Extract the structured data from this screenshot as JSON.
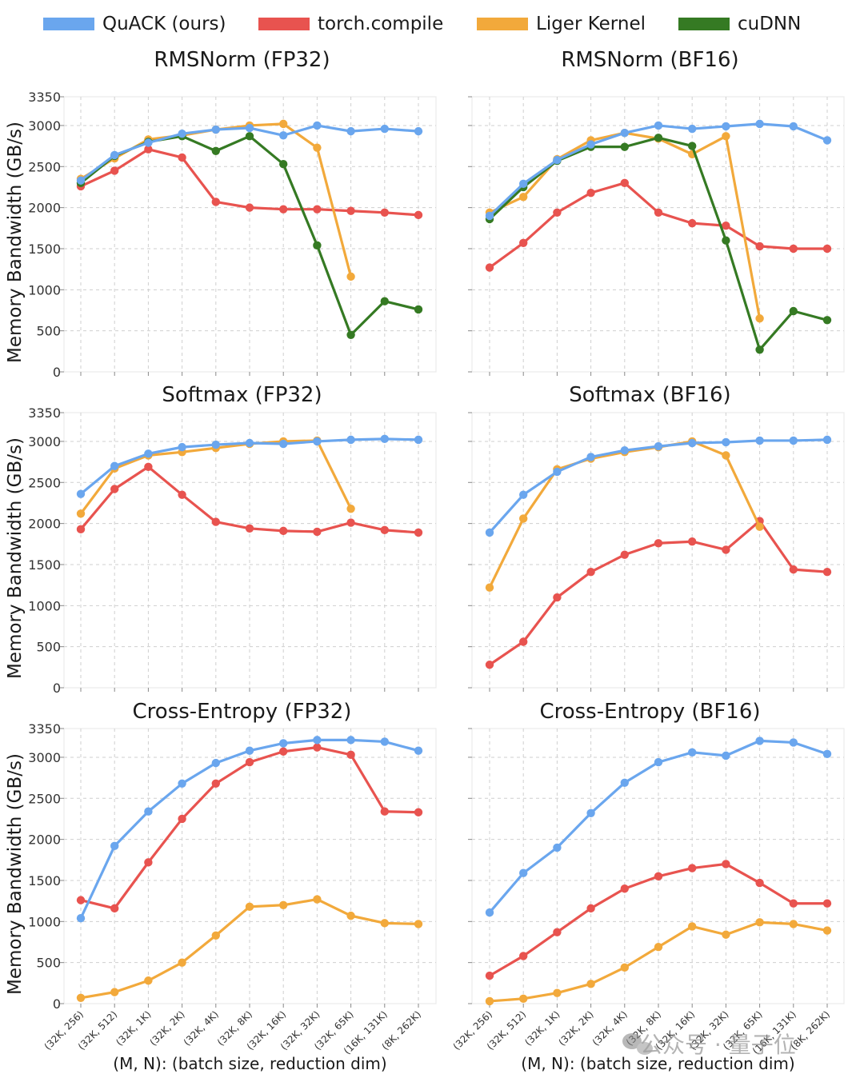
{
  "legend": [
    {
      "name": "QuACK (ours)",
      "color": "#6aa6ee"
    },
    {
      "name": "torch.compile",
      "color": "#e8534f"
    },
    {
      "name": "Liger Kernel",
      "color": "#f2a93b"
    },
    {
      "name": "cuDNN",
      "color": "#357a23"
    }
  ],
  "watermark": "公众号 · 量子位",
  "chart_data": [
    {
      "type": "line",
      "title": "RMSNorm (FP32)",
      "xlabel": "",
      "ylabel": "Memory Bandwidth (GB/s)",
      "ylim": [
        0,
        3350
      ],
      "yticks": [
        0,
        500,
        1000,
        1500,
        2000,
        2500,
        3000,
        3350
      ],
      "grid": true,
      "categories": [
        "(32K, 256)",
        "(32K, 512)",
        "(32K, 1K)",
        "(32K, 2K)",
        "(32K, 4K)",
        "(32K, 8K)",
        "(32K, 16K)",
        "(32K, 32K)",
        "(32K, 65K)",
        "(16K, 131K)",
        "(8K, 262K)"
      ],
      "series": [
        {
          "name": "torch.compile",
          "values": [
            2260,
            2450,
            2710,
            2610,
            2070,
            2000,
            1980,
            1980,
            1960,
            1940,
            1910
          ]
        },
        {
          "name": "Liger Kernel",
          "values": [
            2350,
            2600,
            2830,
            2880,
            2950,
            3000,
            3020,
            2730,
            1160,
            null,
            null
          ]
        },
        {
          "name": "cuDNN",
          "values": [
            2300,
            2630,
            2800,
            2870,
            2690,
            2870,
            2530,
            1540,
            450,
            860,
            760
          ]
        },
        {
          "name": "QuACK (ours)",
          "values": [
            2330,
            2640,
            2790,
            2900,
            2950,
            2970,
            2880,
            3000,
            2930,
            2960,
            2930
          ]
        }
      ]
    },
    {
      "type": "line",
      "title": "RMSNorm (BF16)",
      "xlabel": "",
      "ylabel": "",
      "ylim": [
        0,
        3350
      ],
      "yticks": [
        0,
        500,
        1000,
        1500,
        2000,
        2500,
        3000,
        3350
      ],
      "grid": true,
      "categories": [
        "(32K, 256)",
        "(32K, 512)",
        "(32K, 1K)",
        "(32K, 2K)",
        "(32K, 4K)",
        "(32K, 8K)",
        "(32K, 16K)",
        "(32K, 32K)",
        "(32K, 65K)",
        "(16K, 131K)",
        "(8K, 262K)"
      ],
      "series": [
        {
          "name": "torch.compile",
          "values": [
            1270,
            1570,
            1940,
            2180,
            2300,
            1940,
            1810,
            1780,
            1530,
            1500,
            1500
          ]
        },
        {
          "name": "Liger Kernel",
          "values": [
            1940,
            2130,
            2590,
            2820,
            2910,
            2840,
            2650,
            2870,
            650,
            null,
            null
          ]
        },
        {
          "name": "cuDNN",
          "values": [
            1860,
            2250,
            2570,
            2740,
            2740,
            2850,
            2750,
            1600,
            270,
            740,
            630
          ]
        },
        {
          "name": "QuACK (ours)",
          "values": [
            1900,
            2290,
            2580,
            2770,
            2910,
            3000,
            2960,
            2990,
            3020,
            2990,
            2820
          ]
        }
      ]
    },
    {
      "type": "line",
      "title": "Softmax (FP32)",
      "xlabel": "",
      "ylabel": "Memory Bandwidth (GB/s)",
      "ylim": [
        0,
        3350
      ],
      "yticks": [
        0,
        500,
        1000,
        1500,
        2000,
        2500,
        3000,
        3350
      ],
      "grid": true,
      "categories": [
        "(32K, 256)",
        "(32K, 512)",
        "(32K, 1K)",
        "(32K, 2K)",
        "(32K, 4K)",
        "(32K, 8K)",
        "(32K, 16K)",
        "(32K, 32K)",
        "(32K, 65K)",
        "(16K, 131K)",
        "(8K, 262K)"
      ],
      "series": [
        {
          "name": "torch.compile",
          "values": [
            1930,
            2420,
            2690,
            2350,
            2020,
            1940,
            1910,
            1900,
            2010,
            1920,
            1890
          ]
        },
        {
          "name": "Liger Kernel",
          "values": [
            2120,
            2670,
            2830,
            2870,
            2920,
            2970,
            3000,
            3010,
            2180,
            null,
            null
          ]
        },
        {
          "name": "QuACK (ours)",
          "values": [
            2360,
            2700,
            2850,
            2930,
            2960,
            2980,
            2970,
            3000,
            3020,
            3030,
            3020
          ]
        }
      ]
    },
    {
      "type": "line",
      "title": "Softmax (BF16)",
      "xlabel": "",
      "ylabel": "",
      "ylim": [
        0,
        3350
      ],
      "yticks": [
        0,
        500,
        1000,
        1500,
        2000,
        2500,
        3000,
        3350
      ],
      "grid": true,
      "categories": [
        "(32K, 256)",
        "(32K, 512)",
        "(32K, 1K)",
        "(32K, 2K)",
        "(32K, 4K)",
        "(32K, 8K)",
        "(32K, 16K)",
        "(32K, 32K)",
        "(32K, 65K)",
        "(16K, 131K)",
        "(8K, 262K)"
      ],
      "series": [
        {
          "name": "torch.compile",
          "values": [
            280,
            560,
            1100,
            1410,
            1620,
            1760,
            1780,
            1680,
            2030,
            1440,
            1410
          ]
        },
        {
          "name": "Liger Kernel",
          "values": [
            1220,
            2060,
            2660,
            2790,
            2870,
            2930,
            3000,
            2830,
            1960,
            null,
            null
          ]
        },
        {
          "name": "QuACK (ours)",
          "values": [
            1890,
            2350,
            2630,
            2810,
            2890,
            2940,
            2980,
            2990,
            3010,
            3010,
            3020
          ]
        }
      ]
    },
    {
      "type": "line",
      "title": "Cross-Entropy (FP32)",
      "xlabel": "(M, N): (batch size, reduction dim)",
      "ylabel": "Memory Bandwidth (GB/s)",
      "ylim": [
        0,
        3350
      ],
      "yticks": [
        0,
        500,
        1000,
        1500,
        2000,
        2500,
        3000,
        3350
      ],
      "grid": true,
      "categories": [
        "(32K, 256)",
        "(32K, 512)",
        "(32K, 1K)",
        "(32K, 2K)",
        "(32K, 4K)",
        "(32K, 8K)",
        "(32K, 16K)",
        "(32K, 32K)",
        "(32K, 65K)",
        "(16K, 131K)",
        "(8K, 262K)"
      ],
      "series": [
        {
          "name": "torch.compile",
          "values": [
            1260,
            1160,
            1720,
            2250,
            2680,
            2940,
            3070,
            3120,
            3030,
            2340,
            2330
          ]
        },
        {
          "name": "Liger Kernel",
          "values": [
            70,
            140,
            280,
            500,
            830,
            1180,
            1200,
            1270,
            1070,
            980,
            970
          ]
        },
        {
          "name": "QuACK (ours)",
          "values": [
            1040,
            1920,
            2340,
            2680,
            2930,
            3080,
            3170,
            3210,
            3210,
            3190,
            3080
          ]
        }
      ]
    },
    {
      "type": "line",
      "title": "Cross-Entropy (BF16)",
      "xlabel": "(M, N): (batch size, reduction dim)",
      "ylabel": "",
      "ylim": [
        0,
        3350
      ],
      "yticks": [
        0,
        500,
        1000,
        1500,
        2000,
        2500,
        3000,
        3350
      ],
      "grid": true,
      "categories": [
        "(32K, 256)",
        "(32K, 512)",
        "(32K, 1K)",
        "(32K, 2K)",
        "(32K, 4K)",
        "(32K, 8K)",
        "(32K, 16K)",
        "(32K, 32K)",
        "(32K, 65K)",
        "(16K, 131K)",
        "(8K, 262K)"
      ],
      "series": [
        {
          "name": "torch.compile",
          "values": [
            340,
            580,
            870,
            1160,
            1400,
            1550,
            1650,
            1700,
            1470,
            1220,
            1220
          ]
        },
        {
          "name": "Liger Kernel",
          "values": [
            30,
            60,
            130,
            240,
            440,
            690,
            940,
            840,
            990,
            970,
            890
          ]
        },
        {
          "name": "QuACK (ours)",
          "values": [
            1110,
            1590,
            1900,
            2320,
            2690,
            2940,
            3060,
            3020,
            3200,
            3180,
            3040
          ]
        }
      ]
    }
  ]
}
